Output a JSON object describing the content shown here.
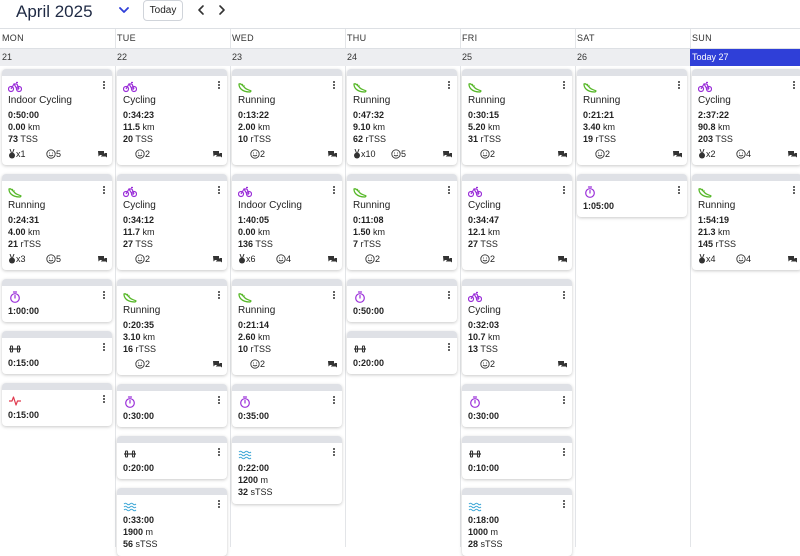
{
  "header": {
    "month": "April 2025",
    "today_label": "Today"
  },
  "days": [
    "MON",
    "TUE",
    "WED",
    "THU",
    "FRI",
    "SAT",
    "SUN"
  ],
  "dates": [
    "21",
    "22",
    "23",
    "24",
    "25",
    "26",
    "Today 27"
  ],
  "cards": [
    {
      "col": 0,
      "type": "cycling",
      "title": "Indoor Cycling",
      "duration": "0:50:00",
      "lines": [
        [
          "0.00",
          "km"
        ],
        [
          "73",
          "TSS"
        ]
      ],
      "medal": "x1",
      "face": "5",
      "chat": true
    },
    {
      "col": 0,
      "type": "running",
      "title": "Running",
      "duration": "0:24:31",
      "lines": [
        [
          "4.00",
          "km"
        ],
        [
          "21",
          "rTSS"
        ]
      ],
      "medal": "x3",
      "face": "5",
      "chat": true
    },
    {
      "col": 0,
      "type": "timer",
      "duration": "1:00:00",
      "lines": []
    },
    {
      "col": 0,
      "type": "strength",
      "duration": "0:15:00",
      "lines": []
    },
    {
      "col": 0,
      "type": "pulse",
      "duration": "0:15:00",
      "lines": []
    },
    {
      "col": 1,
      "type": "cycling",
      "title": "Cycling",
      "duration": "0:34:23",
      "lines": [
        [
          "11.5",
          "km"
        ],
        [
          "20",
          "TSS"
        ]
      ],
      "face": "2",
      "chat": true
    },
    {
      "col": 1,
      "type": "cycling",
      "title": "Cycling",
      "duration": "0:34:12",
      "lines": [
        [
          "11.7",
          "km"
        ],
        [
          "27",
          "TSS"
        ]
      ],
      "face": "2",
      "chat": true
    },
    {
      "col": 1,
      "type": "running",
      "title": "Running",
      "duration": "0:20:35",
      "lines": [
        [
          "3.10",
          "km"
        ],
        [
          "16",
          "rTSS"
        ]
      ],
      "face": "2",
      "chat": true
    },
    {
      "col": 1,
      "type": "timer",
      "duration": "0:30:00",
      "lines": []
    },
    {
      "col": 1,
      "type": "strength",
      "duration": "0:20:00",
      "lines": []
    },
    {
      "col": 1,
      "type": "swim",
      "duration": "0:33:00",
      "lines": [
        [
          "1900",
          "m"
        ],
        [
          "56",
          "sTSS"
        ]
      ]
    },
    {
      "col": 2,
      "type": "running",
      "title": "Running",
      "duration": "0:13:22",
      "lines": [
        [
          "2.00",
          "km"
        ],
        [
          "10",
          "rTSS"
        ]
      ],
      "face": "2",
      "chat": true
    },
    {
      "col": 2,
      "type": "cycling",
      "title": "Indoor Cycling",
      "duration": "1:40:05",
      "lines": [
        [
          "0.00",
          "km"
        ],
        [
          "136",
          "TSS"
        ]
      ],
      "medal": "x6",
      "face": "4",
      "chat": true
    },
    {
      "col": 2,
      "type": "running",
      "title": "Running",
      "duration": "0:21:14",
      "lines": [
        [
          "2.60",
          "km"
        ],
        [
          "10",
          "rTSS"
        ]
      ],
      "face": "2",
      "chat": true
    },
    {
      "col": 2,
      "type": "timer",
      "duration": "0:35:00",
      "lines": []
    },
    {
      "col": 2,
      "type": "swim",
      "duration": "0:22:00",
      "lines": [
        [
          "1200",
          "m"
        ],
        [
          "32",
          "sTSS"
        ]
      ]
    },
    {
      "col": 3,
      "type": "running",
      "title": "Running",
      "duration": "0:47:32",
      "lines": [
        [
          "9.10",
          "km"
        ],
        [
          "62",
          "rTSS"
        ]
      ],
      "medal": "x10",
      "face": "5",
      "chat": true
    },
    {
      "col": 3,
      "type": "running",
      "title": "Running",
      "duration": "0:11:08",
      "lines": [
        [
          "1.50",
          "km"
        ],
        [
          "7",
          "rTSS"
        ]
      ],
      "face": "2",
      "chat": true
    },
    {
      "col": 3,
      "type": "timer",
      "duration": "0:50:00",
      "lines": []
    },
    {
      "col": 3,
      "type": "strength",
      "duration": "0:20:00",
      "lines": []
    },
    {
      "col": 4,
      "type": "running",
      "title": "Running",
      "duration": "0:30:15",
      "lines": [
        [
          "5.20",
          "km"
        ],
        [
          "31",
          "rTSS"
        ]
      ],
      "face": "2",
      "chat": true
    },
    {
      "col": 4,
      "type": "cycling",
      "title": "Cycling",
      "duration": "0:34:47",
      "lines": [
        [
          "12.1",
          "km"
        ],
        [
          "27",
          "TSS"
        ]
      ],
      "face": "2",
      "chat": true
    },
    {
      "col": 4,
      "type": "cycling",
      "title": "Cycling",
      "duration": "0:32:03",
      "lines": [
        [
          "10.7",
          "km"
        ],
        [
          "13",
          "TSS"
        ]
      ],
      "face": "2",
      "chat": true
    },
    {
      "col": 4,
      "type": "timer",
      "duration": "0:30:00",
      "lines": []
    },
    {
      "col": 4,
      "type": "strength",
      "duration": "0:10:00",
      "lines": []
    },
    {
      "col": 4,
      "type": "swim",
      "duration": "0:18:00",
      "lines": [
        [
          "1000",
          "m"
        ],
        [
          "28",
          "sTSS"
        ]
      ]
    },
    {
      "col": 5,
      "type": "running",
      "title": "Running",
      "duration": "0:21:21",
      "lines": [
        [
          "3.40",
          "km"
        ],
        [
          "19",
          "rTSS"
        ]
      ],
      "face": "2",
      "chat": true
    },
    {
      "col": 5,
      "type": "timer",
      "duration": "1:05:00",
      "lines": []
    },
    {
      "col": 6,
      "type": "cycling",
      "title": "Cycling",
      "duration": "2:37:22",
      "lines": [
        [
          "90.8",
          "km"
        ],
        [
          "203",
          "TSS"
        ]
      ],
      "medal": "x2",
      "face": "4",
      "chat": true
    },
    {
      "col": 6,
      "type": "running",
      "title": "Running",
      "duration": "1:54:19",
      "lines": [
        [
          "21.3",
          "km"
        ],
        [
          "145",
          "rTSS"
        ]
      ],
      "medal": "x4",
      "face": "4",
      "chat": true
    }
  ]
}
